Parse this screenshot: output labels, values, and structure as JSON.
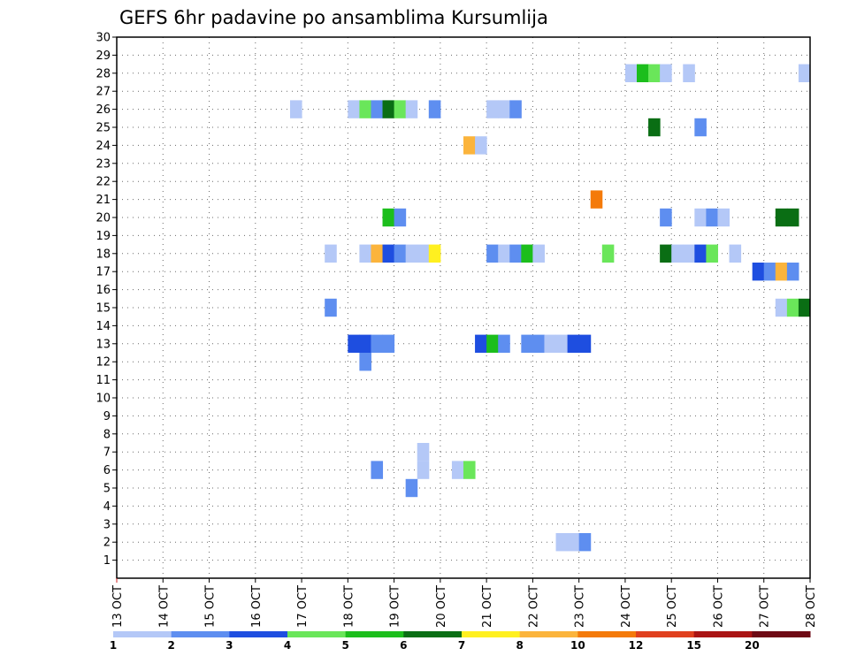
{
  "chart_data": {
    "type": "heatmap",
    "title": "GEFS 6hr padavine po ansamblima Kursumlija",
    "xlabel": "",
    "ylabel": "",
    "x_ticks": [
      "13 OCT",
      "14 OCT",
      "15 OCT",
      "16 OCT",
      "17 OCT",
      "18 OCT",
      "19 OCT",
      "20 OCT",
      "21 OCT",
      "22 OCT",
      "23 OCT",
      "24 OCT",
      "25 OCT",
      "26 OCT",
      "27 OCT",
      "28 OCT"
    ],
    "xlim_days": [
      13,
      28
    ],
    "y_ticks": [
      1,
      2,
      3,
      4,
      5,
      6,
      7,
      8,
      9,
      10,
      11,
      12,
      13,
      14,
      15,
      16,
      17,
      18,
      19,
      20,
      21,
      22,
      23,
      24,
      25,
      26,
      27,
      28,
      29,
      30
    ],
    "ylim": [
      0,
      30
    ],
    "grid": true,
    "legend": {
      "position": "bottom",
      "levels": [
        "1",
        "2",
        "3",
        "4",
        "5",
        "6",
        "7",
        "8",
        "10",
        "12",
        "15",
        "20"
      ],
      "colors": [
        "#b4c8f7",
        "#5e8ef0",
        "#1e4ee0",
        "#6ae65a",
        "#1cbe1c",
        "#0a6e14",
        "#fff020",
        "#fbb43c",
        "#f47a0a",
        "#e0401e",
        "#aa1414",
        "#6e0a14"
      ]
    },
    "cells": [
      {
        "m": 28,
        "t": 24.0,
        "c": 0
      },
      {
        "m": 28,
        "t": 24.25,
        "c": 4
      },
      {
        "m": 28,
        "t": 24.5,
        "c": 3
      },
      {
        "m": 28,
        "t": 24.75,
        "c": 0
      },
      {
        "m": 28,
        "t": 25.25,
        "c": 0
      },
      {
        "m": 28,
        "t": 27.75,
        "c": 0
      },
      {
        "m": 26,
        "t": 16.75,
        "c": 0
      },
      {
        "m": 26,
        "t": 18.0,
        "c": 0
      },
      {
        "m": 26,
        "t": 18.25,
        "c": 3
      },
      {
        "m": 26,
        "t": 18.5,
        "c": 1
      },
      {
        "m": 26,
        "t": 18.75,
        "c": 5
      },
      {
        "m": 26,
        "t": 19.0,
        "c": 3
      },
      {
        "m": 26,
        "t": 19.25,
        "c": 0
      },
      {
        "m": 26,
        "t": 19.75,
        "c": 1
      },
      {
        "m": 26,
        "t": 21.0,
        "c": 0
      },
      {
        "m": 26,
        "t": 21.25,
        "c": 0
      },
      {
        "m": 26,
        "t": 21.5,
        "c": 1
      },
      {
        "m": 25,
        "t": 24.5,
        "c": 5
      },
      {
        "m": 25,
        "t": 25.5,
        "c": 1
      },
      {
        "m": 24,
        "t": 20.5,
        "c": 7
      },
      {
        "m": 24,
        "t": 20.75,
        "c": 0
      },
      {
        "m": 21,
        "t": 23.25,
        "c": 8
      },
      {
        "m": 20,
        "t": 18.75,
        "c": 4
      },
      {
        "m": 20,
        "t": 19.0,
        "c": 1
      },
      {
        "m": 20,
        "t": 24.75,
        "c": 1
      },
      {
        "m": 20,
        "t": 25.5,
        "c": 0
      },
      {
        "m": 20,
        "t": 25.75,
        "c": 1
      },
      {
        "m": 20,
        "t": 26.0,
        "c": 0
      },
      {
        "m": 20,
        "t": 27.25,
        "c": 5
      },
      {
        "m": 20,
        "t": 27.5,
        "c": 5
      },
      {
        "m": 18,
        "t": 17.5,
        "c": 0
      },
      {
        "m": 18,
        "t": 18.25,
        "c": 0
      },
      {
        "m": 18,
        "t": 18.5,
        "c": 7
      },
      {
        "m": 18,
        "t": 18.75,
        "c": 2
      },
      {
        "m": 18,
        "t": 19.0,
        "c": 1
      },
      {
        "m": 18,
        "t": 19.25,
        "c": 0
      },
      {
        "m": 18,
        "t": 19.5,
        "c": 0
      },
      {
        "m": 18,
        "t": 19.75,
        "c": 6
      },
      {
        "m": 18,
        "t": 21.0,
        "c": 1
      },
      {
        "m": 18,
        "t": 21.25,
        "c": 0
      },
      {
        "m": 18,
        "t": 21.5,
        "c": 1
      },
      {
        "m": 18,
        "t": 21.75,
        "c": 4
      },
      {
        "m": 18,
        "t": 22.0,
        "c": 0
      },
      {
        "m": 18,
        "t": 23.5,
        "c": 3
      },
      {
        "m": 18,
        "t": 24.75,
        "c": 5
      },
      {
        "m": 18,
        "t": 25.0,
        "c": 0
      },
      {
        "m": 18,
        "t": 25.25,
        "c": 0
      },
      {
        "m": 18,
        "t": 25.5,
        "c": 2
      },
      {
        "m": 18,
        "t": 25.75,
        "c": 3
      },
      {
        "m": 18,
        "t": 26.25,
        "c": 0
      },
      {
        "m": 17,
        "t": 26.75,
        "c": 2
      },
      {
        "m": 17,
        "t": 27.0,
        "c": 1
      },
      {
        "m": 17,
        "t": 27.25,
        "c": 7
      },
      {
        "m": 17,
        "t": 27.5,
        "c": 1
      },
      {
        "m": 15,
        "t": 17.5,
        "c": 1
      },
      {
        "m": 15,
        "t": 27.25,
        "c": 0
      },
      {
        "m": 15,
        "t": 27.5,
        "c": 3
      },
      {
        "m": 15,
        "t": 27.75,
        "c": 5
      },
      {
        "m": 13,
        "t": 18.0,
        "c": 2
      },
      {
        "m": 13,
        "t": 18.25,
        "c": 2
      },
      {
        "m": 13,
        "t": 18.5,
        "c": 1
      },
      {
        "m": 13,
        "t": 18.75,
        "c": 1
      },
      {
        "m": 13,
        "t": 20.75,
        "c": 2
      },
      {
        "m": 13,
        "t": 21.0,
        "c": 4
      },
      {
        "m": 13,
        "t": 21.25,
        "c": 1
      },
      {
        "m": 13,
        "t": 21.75,
        "c": 1
      },
      {
        "m": 13,
        "t": 22.0,
        "c": 1
      },
      {
        "m": 13,
        "t": 22.25,
        "c": 0
      },
      {
        "m": 13,
        "t": 22.5,
        "c": 0
      },
      {
        "m": 13,
        "t": 22.75,
        "c": 2
      },
      {
        "m": 13,
        "t": 23.0,
        "c": 2
      },
      {
        "m": 12,
        "t": 18.25,
        "c": 1
      },
      {
        "m": 7,
        "t": 19.5,
        "c": 0
      },
      {
        "m": 6,
        "t": 18.5,
        "c": 1
      },
      {
        "m": 6,
        "t": 19.5,
        "c": 0
      },
      {
        "m": 6,
        "t": 20.25,
        "c": 0
      },
      {
        "m": 6,
        "t": 20.5,
        "c": 3
      },
      {
        "m": 5,
        "t": 19.25,
        "c": 1
      },
      {
        "m": 2,
        "t": 22.5,
        "c": 0
      },
      {
        "m": 2,
        "t": 22.75,
        "c": 0
      },
      {
        "m": 2,
        "t": 23.0,
        "c": 1
      }
    ]
  }
}
